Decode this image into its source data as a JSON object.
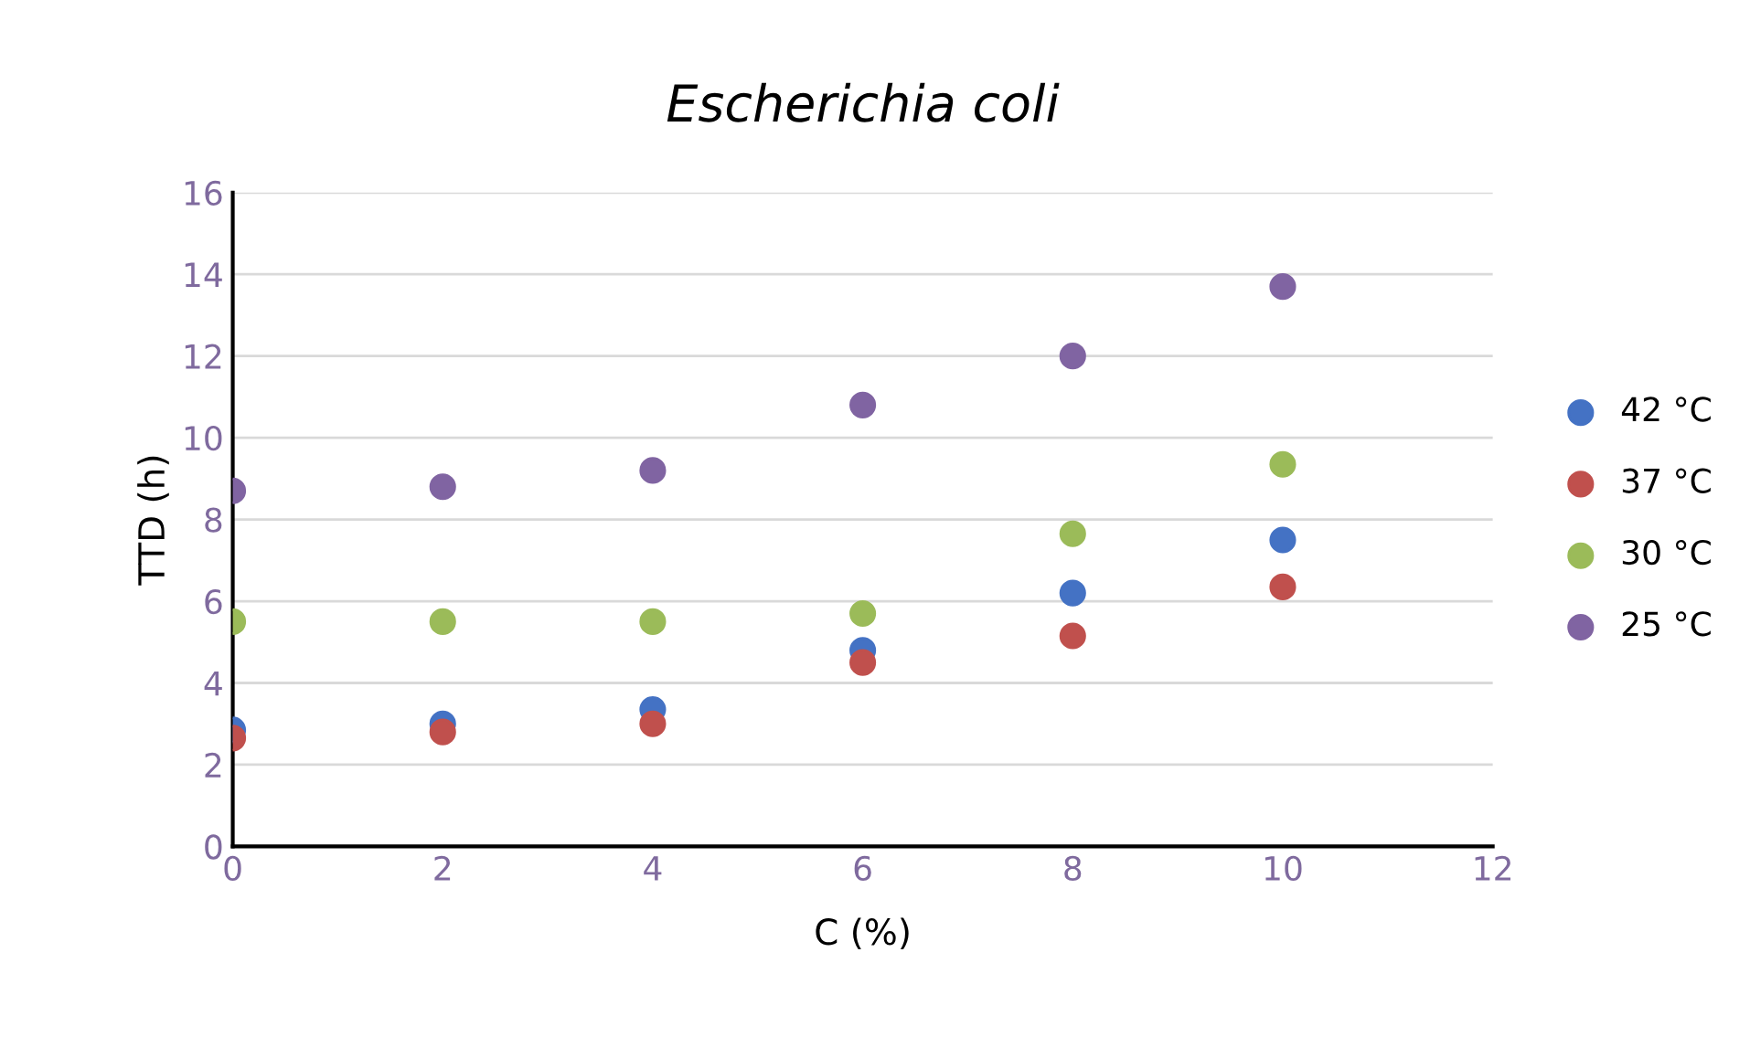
{
  "chart_data": {
    "type": "scatter",
    "title": "Escherichia coli",
    "xlabel": "C (%)",
    "ylabel": "TTD (h)",
    "x": [
      0,
      2,
      4,
      6,
      8,
      10
    ],
    "series": [
      {
        "name": "42 °C",
        "color": "#4472c4",
        "values": [
          2.85,
          3.0,
          3.35,
          4.8,
          6.2,
          7.5
        ]
      },
      {
        "name": "37 °C",
        "color": "#c0504d",
        "values": [
          2.65,
          2.8,
          3.0,
          4.5,
          5.15,
          6.35
        ]
      },
      {
        "name": "30 °C",
        "color": "#9bbb59",
        "values": [
          5.5,
          5.5,
          5.5,
          5.7,
          7.65,
          9.35
        ]
      },
      {
        "name": "25 °C",
        "color": "#8064a2",
        "values": [
          8.7,
          8.8,
          9.2,
          10.8,
          12.0,
          13.7
        ]
      }
    ],
    "xlim": [
      0,
      12
    ],
    "xticks": [
      0,
      2,
      4,
      6,
      8,
      10,
      12
    ],
    "ylim": [
      0,
      16
    ],
    "yticks": [
      0,
      2,
      4,
      6,
      8,
      10,
      12,
      14,
      16
    ],
    "grid": "y",
    "legend": "right",
    "marker": "circle"
  }
}
